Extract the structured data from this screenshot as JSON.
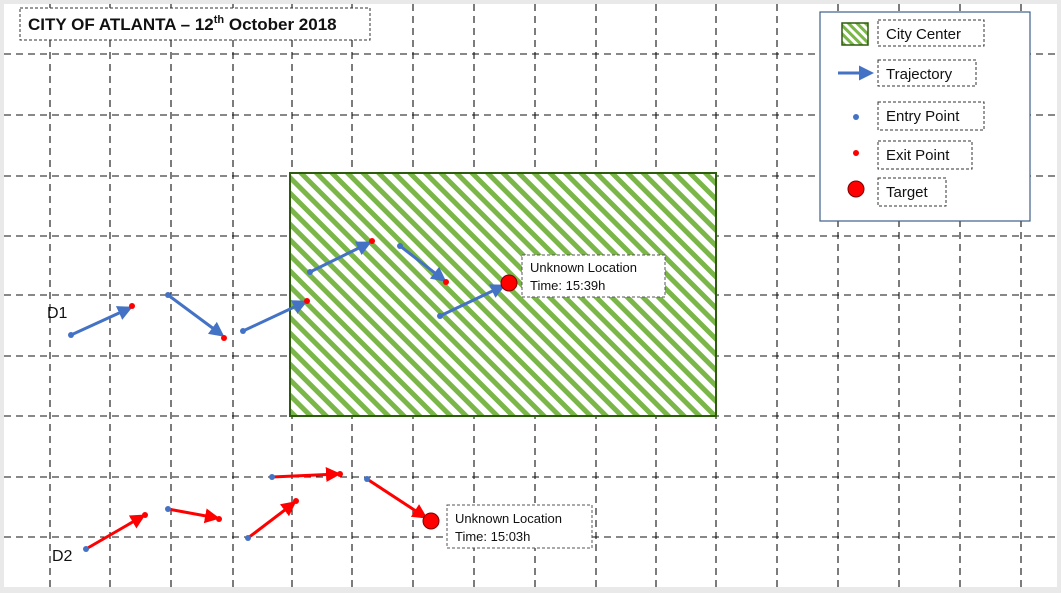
{
  "title": {
    "prefix": "CITY OF ATLANTA – 12",
    "superscript": "th",
    "suffix": " October 2018"
  },
  "legend": {
    "city_center": "City Center",
    "trajectory": "Trajectory",
    "entry_point": "Entry Point",
    "exit_point": "Exit Point",
    "target": "Target"
  },
  "drones": [
    {
      "name": "D1",
      "color": "#4472c4",
      "target_label_line1": "Unknown Location",
      "target_label_line2": "Time: 15:39h"
    },
    {
      "name": "D2",
      "color": "#ff0000",
      "target_label_line1": "Unknown Location",
      "target_label_line2": "Time: 15:03h"
    }
  ],
  "colors": {
    "hatch_green": "#7ab648",
    "hatch_border": "#2e5c0e",
    "entry_point": "#4472c4",
    "exit_point": "#ff0000",
    "target": "#ff0000",
    "grid": "#111111"
  }
}
